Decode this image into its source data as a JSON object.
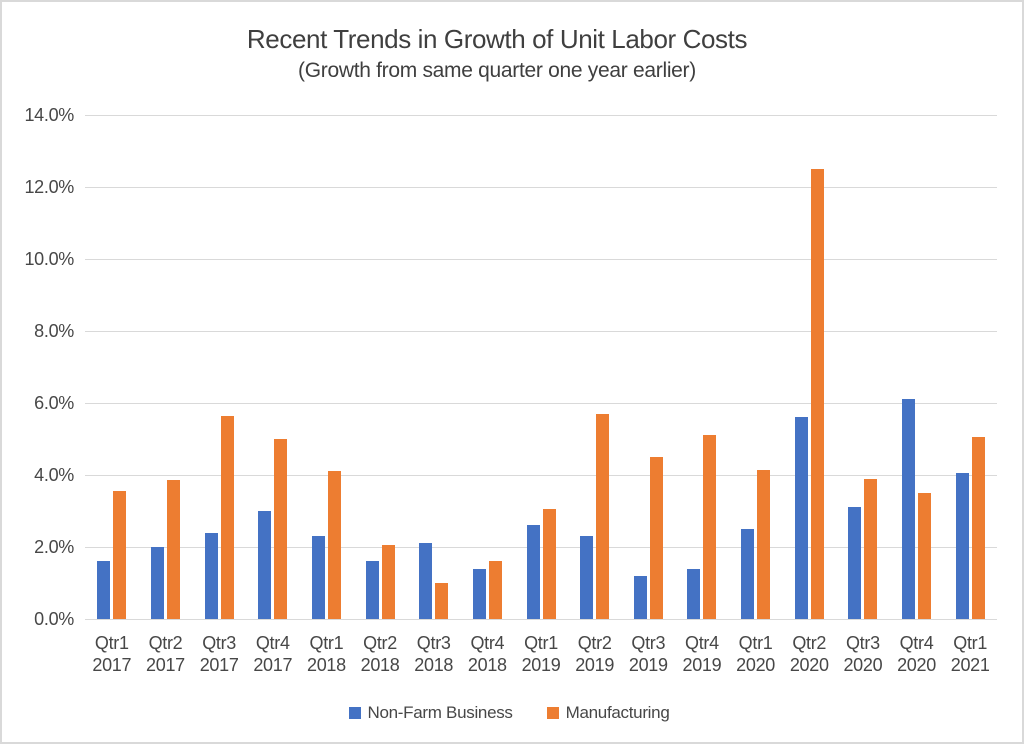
{
  "chart": {
    "title": "Recent Trends in Growth of Unit Labor Costs",
    "subtitle": "(Growth from same quarter one year earlier)"
  },
  "chart_data": {
    "type": "bar",
    "title": "Recent Trends in Growth of Unit Labor Costs",
    "subtitle": "(Growth from same quarter one year earlier)",
    "categories": [
      [
        "Qtr1",
        "2017"
      ],
      [
        "Qtr2",
        "2017"
      ],
      [
        "Qtr3",
        "2017"
      ],
      [
        "Qtr4",
        "2017"
      ],
      [
        "Qtr1",
        "2018"
      ],
      [
        "Qtr2",
        "2018"
      ],
      [
        "Qtr3",
        "2018"
      ],
      [
        "Qtr4",
        "2018"
      ],
      [
        "Qtr1",
        "2019"
      ],
      [
        "Qtr2",
        "2019"
      ],
      [
        "Qtr3",
        "2019"
      ],
      [
        "Qtr4",
        "2019"
      ],
      [
        "Qtr1",
        "2020"
      ],
      [
        "Qtr2",
        "2020"
      ],
      [
        "Qtr3",
        "2020"
      ],
      [
        "Qtr4",
        "2020"
      ],
      [
        "Qtr1",
        "2021"
      ]
    ],
    "series": [
      {
        "name": "Non-Farm Business",
        "color": "#4472C4",
        "values": [
          1.6,
          2.0,
          2.4,
          3.0,
          2.3,
          1.6,
          2.1,
          1.4,
          2.6,
          2.3,
          1.2,
          1.4,
          2.5,
          5.6,
          3.1,
          6.1,
          4.05
        ]
      },
      {
        "name": "Manufacturing",
        "color": "#ED7D31",
        "values": [
          3.55,
          3.85,
          5.65,
          5.0,
          4.1,
          2.05,
          1.0,
          1.6,
          3.05,
          5.7,
          4.5,
          5.1,
          4.15,
          12.5,
          3.9,
          3.5,
          5.05
        ]
      }
    ],
    "ylim": [
      0,
      14
    ],
    "ytick_step": 2,
    "ytick_labels": [
      "0.0%",
      "2.0%",
      "4.0%",
      "6.0%",
      "8.0%",
      "10.0%",
      "12.0%",
      "14.0%"
    ],
    "grid": true,
    "legend_position": "bottom",
    "colors": {
      "grid": "#d9d9d9",
      "axis_text": "#474747",
      "title_text": "#3f3f3f"
    }
  }
}
